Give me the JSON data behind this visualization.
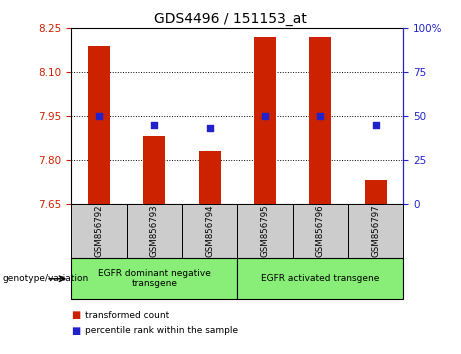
{
  "title": "GDS4496 / 151153_at",
  "samples": [
    "GSM856792",
    "GSM856793",
    "GSM856794",
    "GSM856795",
    "GSM856796",
    "GSM856797"
  ],
  "red_values": [
    8.19,
    7.88,
    7.83,
    8.22,
    8.22,
    7.73
  ],
  "blue_pct": [
    50,
    45,
    43,
    50,
    50,
    45
  ],
  "ylim_left": [
    7.65,
    8.25
  ],
  "ylim_right": [
    0,
    100
  ],
  "yticks_left": [
    7.65,
    7.8,
    7.95,
    8.1,
    8.25
  ],
  "yticks_right": [
    0,
    25,
    50,
    75,
    100
  ],
  "bar_bottom": 7.65,
  "red_color": "#cc2200",
  "blue_color": "#2222cc",
  "group1_label": "EGFR dominant negative\ntransgene",
  "group2_label": "EGFR activated transgene",
  "legend_red": "transformed count",
  "legend_blue": "percentile rank within the sample",
  "genotype_label": "genotype/variation",
  "green_bg": "#88ee77",
  "gray_bg": "#cccccc",
  "bar_width": 0.4,
  "grid_yticks": [
    7.8,
    7.95,
    8.1
  ]
}
